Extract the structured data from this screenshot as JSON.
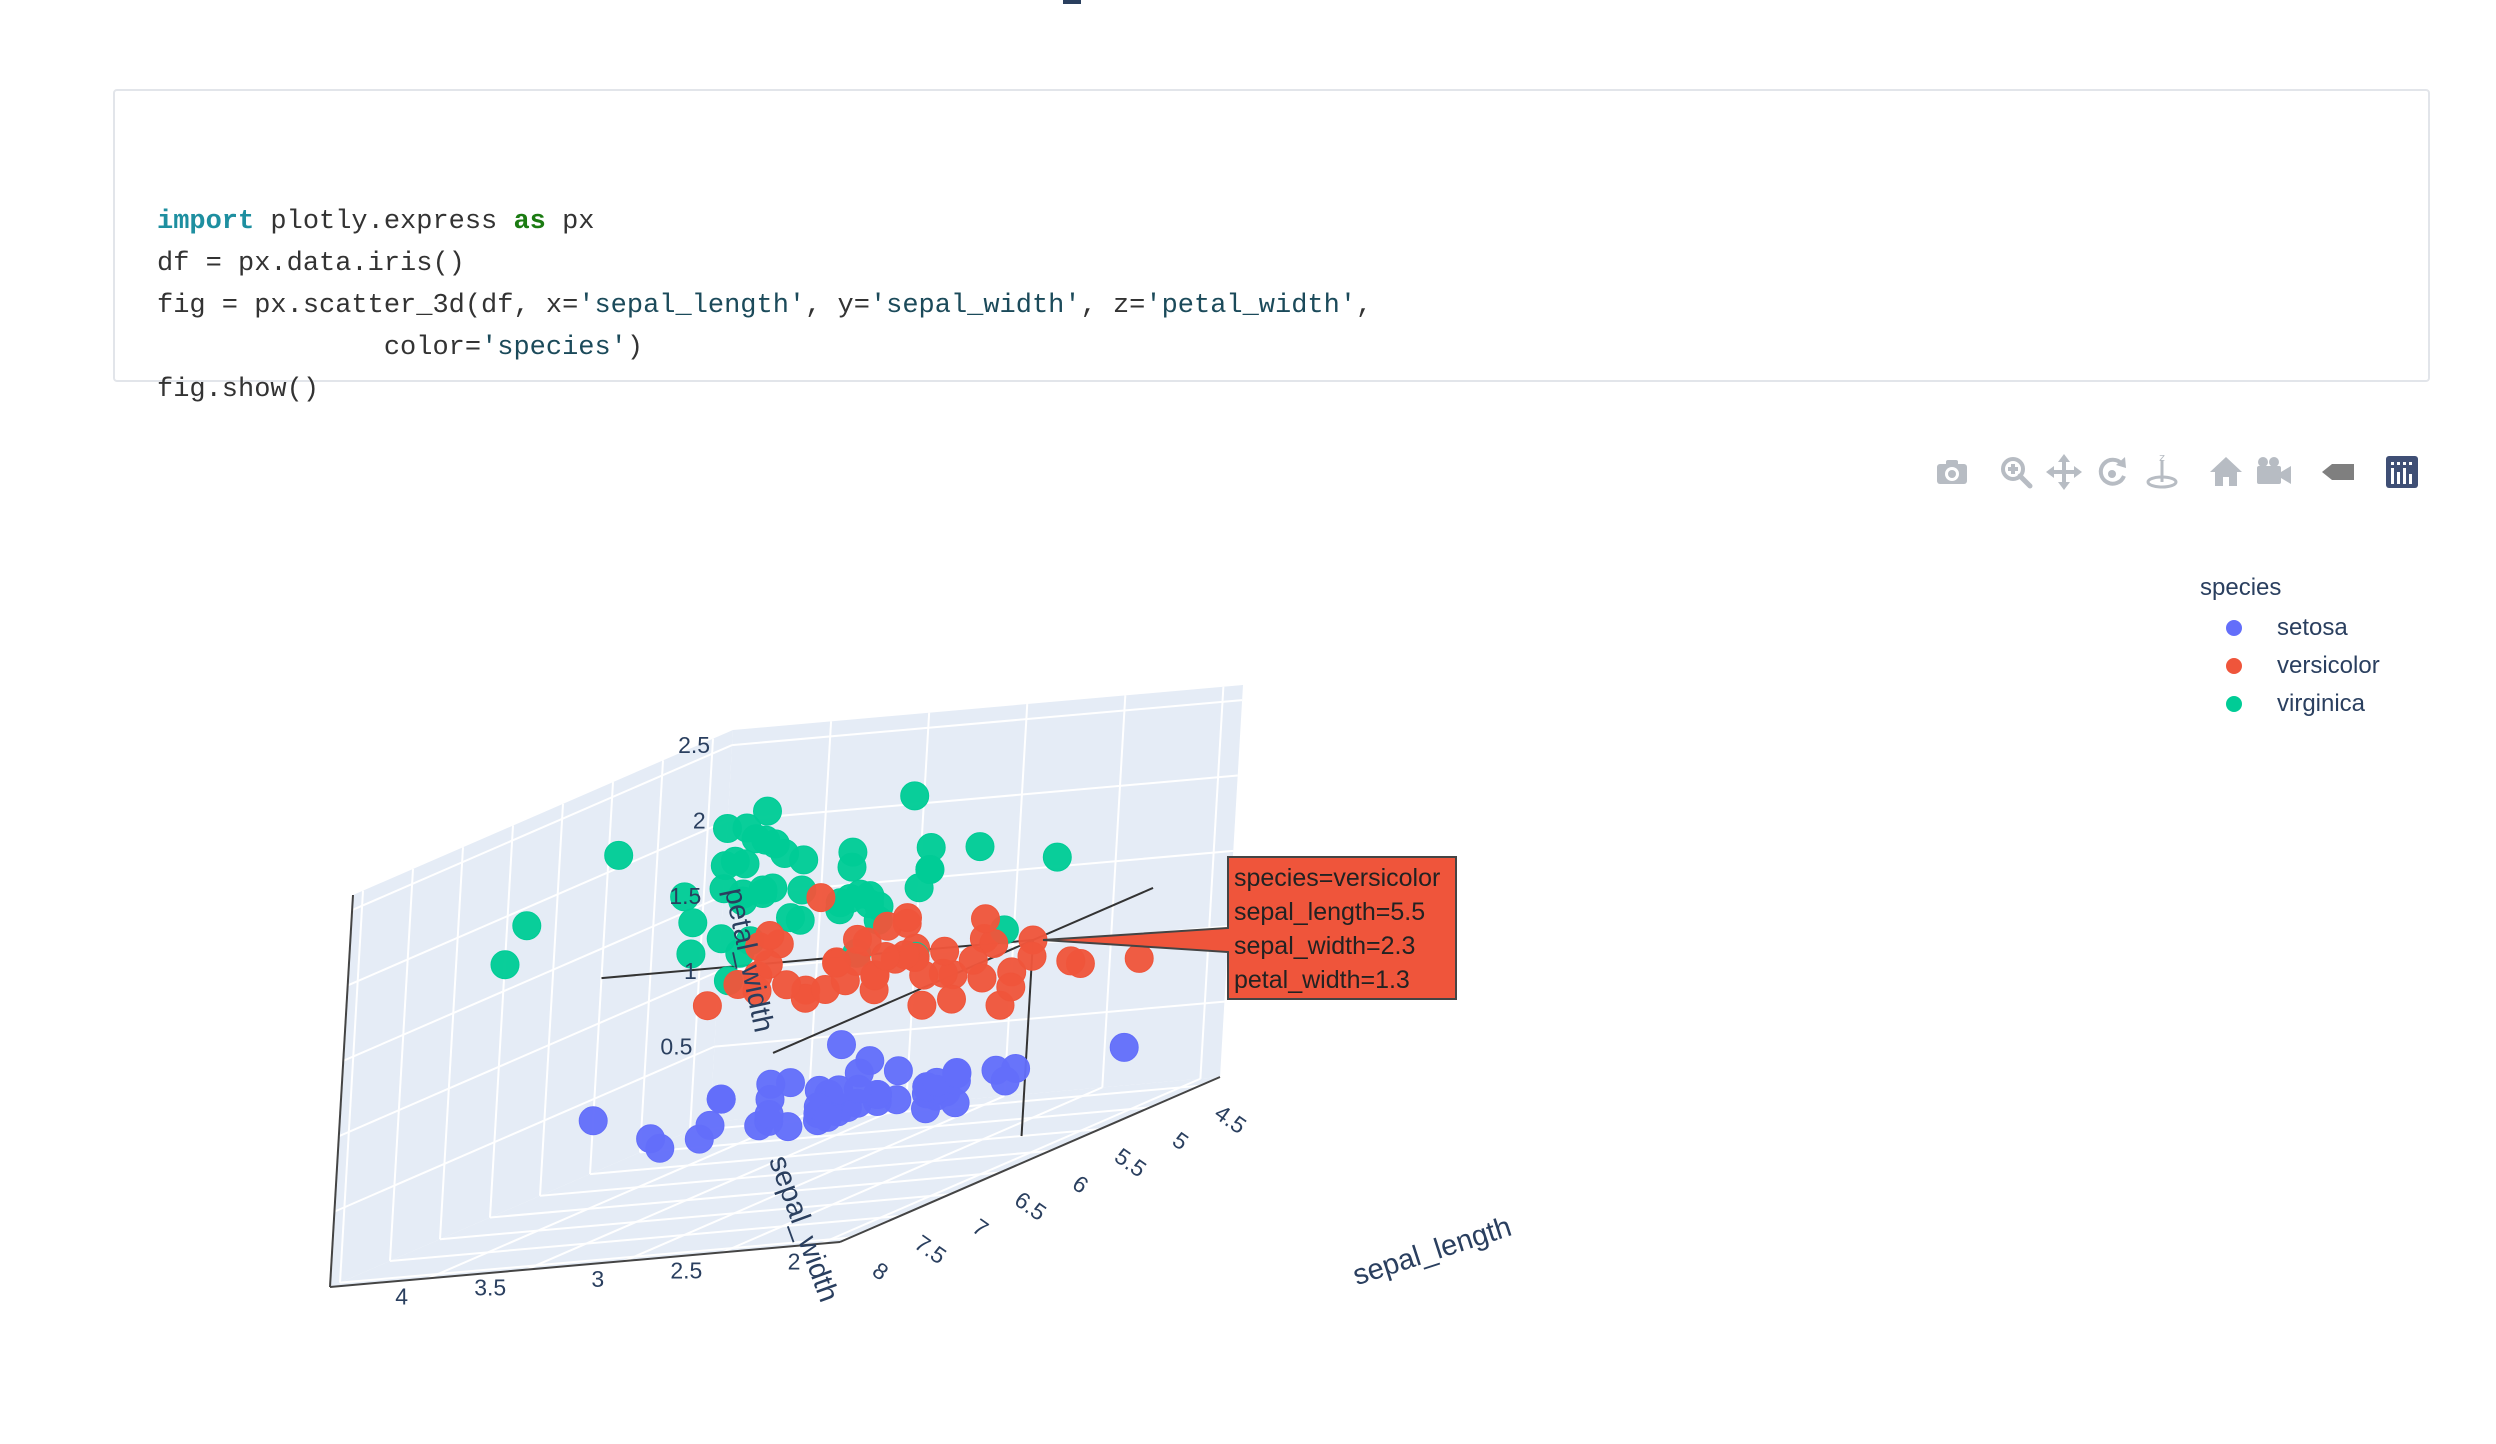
{
  "code": {
    "lines": [
      [
        {
          "t": "import",
          "c": "kw-import"
        },
        {
          "t": " plotly.express "
        },
        {
          "t": "as",
          "c": "kw-as"
        },
        {
          "t": " px"
        }
      ],
      [
        {
          "t": "df = px.data.iris()"
        }
      ],
      [
        {
          "t": "fig = px.scatter_3d(df, x="
        },
        {
          "t": "'sepal_length'",
          "c": "str"
        },
        {
          "t": ", y="
        },
        {
          "t": "'sepal_width'",
          "c": "str"
        },
        {
          "t": ", z="
        },
        {
          "t": "'petal_width'",
          "c": "str"
        },
        {
          "t": ","
        }
      ],
      [
        {
          "t": "              color="
        },
        {
          "t": "'species'",
          "c": "str"
        },
        {
          "t": ")"
        }
      ],
      [
        {
          "t": "fig.show()"
        }
      ]
    ]
  },
  "modebar": {
    "buttons": [
      "camera-icon",
      "zoom-icon",
      "pan-icon",
      "orbit-rotation-icon",
      "turntable-rotation-icon",
      "home-icon",
      "save-camera-icon",
      "hover-toggle-icon",
      "plotly-logo-icon"
    ]
  },
  "legend": {
    "title": "species",
    "items": [
      {
        "label": "setosa",
        "color": "#636efa"
      },
      {
        "label": "versicolor",
        "color": "#EF553B"
      },
      {
        "label": "virginica",
        "color": "#00cc96"
      }
    ]
  },
  "chart_data": {
    "type": "scatter",
    "title": "",
    "xlabel": "sepal_length",
    "ylabel": "sepal_width",
    "zlabel": "petal_width",
    "x_ticks": [
      "4.5",
      "5",
      "5.5",
      "6",
      "6.5",
      "7",
      "7.5",
      "8"
    ],
    "y_ticks": [
      "2",
      "2.5",
      "3",
      "3.5",
      "4"
    ],
    "z_ticks": [
      "0.5",
      "1",
      "1.5",
      "2",
      "2.5"
    ],
    "xlim": [
      4.3,
      8.1
    ],
    "ylim": [
      1.9,
      4.5
    ],
    "zlim": [
      0,
      2.6
    ],
    "background_color": "#e5ecf6",
    "series": [
      {
        "name": "setosa",
        "color": "#636efa",
        "points": [
          [
            5.1,
            3.5,
            0.2
          ],
          [
            4.9,
            3.0,
            0.2
          ],
          [
            4.7,
            3.2,
            0.2
          ],
          [
            4.6,
            3.1,
            0.2
          ],
          [
            5.0,
            3.6,
            0.2
          ],
          [
            5.4,
            3.9,
            0.4
          ],
          [
            4.6,
            3.4,
            0.3
          ],
          [
            5.0,
            3.4,
            0.2
          ],
          [
            4.4,
            2.9,
            0.2
          ],
          [
            4.9,
            3.1,
            0.1
          ],
          [
            5.4,
            3.7,
            0.2
          ],
          [
            4.8,
            3.4,
            0.2
          ],
          [
            4.8,
            3.0,
            0.1
          ],
          [
            4.3,
            3.0,
            0.1
          ],
          [
            5.8,
            4.0,
            0.2
          ],
          [
            5.7,
            4.4,
            0.4
          ],
          [
            5.4,
            3.9,
            0.4
          ],
          [
            5.1,
            3.5,
            0.3
          ],
          [
            5.7,
            3.8,
            0.3
          ],
          [
            5.1,
            3.8,
            0.3
          ],
          [
            5.4,
            3.4,
            0.2
          ],
          [
            5.1,
            3.7,
            0.4
          ],
          [
            4.6,
            3.6,
            0.2
          ],
          [
            5.1,
            3.3,
            0.5
          ],
          [
            4.8,
            3.4,
            0.2
          ],
          [
            5.0,
            3.0,
            0.2
          ],
          [
            5.0,
            3.4,
            0.4
          ],
          [
            5.2,
            3.5,
            0.2
          ],
          [
            5.2,
            3.4,
            0.2
          ],
          [
            4.7,
            3.2,
            0.2
          ],
          [
            4.8,
            3.1,
            0.2
          ],
          [
            5.4,
            3.4,
            0.4
          ],
          [
            5.2,
            4.1,
            0.1
          ],
          [
            5.5,
            4.2,
            0.2
          ],
          [
            4.9,
            3.1,
            0.2
          ],
          [
            5.0,
            3.2,
            0.2
          ],
          [
            5.5,
            3.5,
            0.2
          ],
          [
            4.9,
            3.6,
            0.1
          ],
          [
            4.4,
            3.0,
            0.2
          ],
          [
            5.1,
            3.4,
            0.2
          ],
          [
            5.0,
            3.5,
            0.3
          ],
          [
            4.5,
            2.3,
            0.3
          ],
          [
            4.4,
            3.2,
            0.2
          ],
          [
            5.0,
            3.5,
            0.6
          ],
          [
            5.1,
            3.8,
            0.4
          ],
          [
            4.8,
            3.0,
            0.3
          ],
          [
            5.1,
            3.8,
            0.2
          ],
          [
            4.6,
            3.2,
            0.2
          ],
          [
            5.3,
            3.7,
            0.2
          ],
          [
            5.0,
            3.3,
            0.2
          ]
        ]
      },
      {
        "name": "versicolor",
        "color": "#EF553B",
        "points": [
          [
            7.0,
            3.2,
            1.4
          ],
          [
            6.4,
            3.2,
            1.5
          ],
          [
            6.9,
            3.1,
            1.5
          ],
          [
            5.5,
            2.3,
            1.3
          ],
          [
            6.5,
            2.8,
            1.5
          ],
          [
            5.7,
            2.8,
            1.3
          ],
          [
            6.3,
            3.3,
            1.6
          ],
          [
            4.9,
            2.4,
            1.0
          ],
          [
            6.6,
            2.9,
            1.3
          ],
          [
            5.2,
            2.7,
            1.4
          ],
          [
            5.0,
            2.0,
            1.0
          ],
          [
            5.9,
            3.0,
            1.5
          ],
          [
            6.0,
            2.2,
            1.0
          ],
          [
            6.1,
            2.9,
            1.4
          ],
          [
            5.6,
            2.9,
            1.3
          ],
          [
            6.7,
            3.1,
            1.4
          ],
          [
            5.6,
            3.0,
            1.5
          ],
          [
            5.8,
            2.7,
            1.0
          ],
          [
            6.2,
            2.2,
            1.5
          ],
          [
            5.6,
            2.5,
            1.1
          ],
          [
            5.9,
            3.2,
            1.8
          ],
          [
            6.1,
            2.8,
            1.3
          ],
          [
            6.3,
            2.5,
            1.5
          ],
          [
            6.1,
            2.8,
            1.2
          ],
          [
            6.4,
            2.9,
            1.3
          ],
          [
            6.6,
            3.0,
            1.4
          ],
          [
            6.8,
            2.8,
            1.4
          ],
          [
            6.7,
            3.0,
            1.7
          ],
          [
            6.0,
            2.9,
            1.5
          ],
          [
            5.7,
            2.6,
            1.0
          ],
          [
            5.5,
            2.4,
            1.1
          ],
          [
            5.5,
            2.4,
            1.0
          ],
          [
            5.8,
            2.7,
            1.2
          ],
          [
            6.0,
            2.7,
            1.6
          ],
          [
            5.4,
            3.0,
            1.5
          ],
          [
            6.0,
            3.4,
            1.6
          ],
          [
            6.7,
            3.1,
            1.5
          ],
          [
            6.3,
            2.3,
            1.3
          ],
          [
            5.6,
            3.0,
            1.3
          ],
          [
            5.5,
            2.5,
            1.3
          ],
          [
            5.5,
            2.6,
            1.2
          ],
          [
            6.1,
            3.0,
            1.4
          ],
          [
            5.8,
            2.6,
            1.2
          ],
          [
            5.0,
            2.3,
            1.0
          ],
          [
            5.6,
            2.7,
            1.3
          ],
          [
            5.7,
            3.0,
            1.2
          ],
          [
            5.7,
            2.9,
            1.3
          ],
          [
            6.2,
            2.9,
            1.3
          ],
          [
            5.1,
            2.5,
            1.1
          ],
          [
            5.7,
            2.8,
            1.3
          ]
        ]
      },
      {
        "name": "virginica",
        "color": "#00cc96",
        "points": [
          [
            6.3,
            3.3,
            2.5
          ],
          [
            5.8,
            2.7,
            1.9
          ],
          [
            7.1,
            3.0,
            2.1
          ],
          [
            6.3,
            2.9,
            1.8
          ],
          [
            6.5,
            3.0,
            2.2
          ],
          [
            7.6,
            3.0,
            2.1
          ],
          [
            4.9,
            2.5,
            1.7
          ],
          [
            7.3,
            2.9,
            1.8
          ],
          [
            6.7,
            2.5,
            1.8
          ],
          [
            7.2,
            3.6,
            2.5
          ],
          [
            6.5,
            3.2,
            2.0
          ],
          [
            6.4,
            2.7,
            1.9
          ],
          [
            6.8,
            3.0,
            2.1
          ],
          [
            5.7,
            2.5,
            2.0
          ],
          [
            5.8,
            2.8,
            2.4
          ],
          [
            6.4,
            3.2,
            2.3
          ],
          [
            6.5,
            3.0,
            1.8
          ],
          [
            7.7,
            3.8,
            2.2
          ],
          [
            7.7,
            2.6,
            2.3
          ],
          [
            6.0,
            2.2,
            1.5
          ],
          [
            6.9,
            3.2,
            2.3
          ],
          [
            5.6,
            2.8,
            2.0
          ],
          [
            7.7,
            2.8,
            2.0
          ],
          [
            6.3,
            2.7,
            1.8
          ],
          [
            6.7,
            3.3,
            2.1
          ],
          [
            7.2,
            3.2,
            1.8
          ],
          [
            6.2,
            2.8,
            1.8
          ],
          [
            6.1,
            3.0,
            1.8
          ],
          [
            6.4,
            2.8,
            2.1
          ],
          [
            7.2,
            3.0,
            1.6
          ],
          [
            7.4,
            2.8,
            1.9
          ],
          [
            7.9,
            3.8,
            2.0
          ],
          [
            6.4,
            2.8,
            2.2
          ],
          [
            6.3,
            2.8,
            1.5
          ],
          [
            6.1,
            2.6,
            1.4
          ],
          [
            7.7,
            3.0,
            2.3
          ],
          [
            6.3,
            3.4,
            2.4
          ],
          [
            6.4,
            3.1,
            1.8
          ],
          [
            6.0,
            3.0,
            1.8
          ],
          [
            6.9,
            3.1,
            2.1
          ],
          [
            6.7,
            3.1,
            2.4
          ],
          [
            6.9,
            3.1,
            2.3
          ],
          [
            5.8,
            2.7,
            1.9
          ],
          [
            6.8,
            3.2,
            2.3
          ],
          [
            6.7,
            3.3,
            2.5
          ],
          [
            6.7,
            3.0,
            2.3
          ],
          [
            6.3,
            2.5,
            1.9
          ],
          [
            6.5,
            3.0,
            2.0
          ],
          [
            6.2,
            3.4,
            2.3
          ],
          [
            5.9,
            3.0,
            1.8
          ]
        ]
      }
    ],
    "hover": {
      "series": "versicolor",
      "point": [
        5.5,
        2.3,
        1.3
      ],
      "lines": [
        "species=versicolor",
        "sepal_length=5.5",
        "sepal_width=2.3",
        "petal_width=1.3"
      ]
    }
  }
}
